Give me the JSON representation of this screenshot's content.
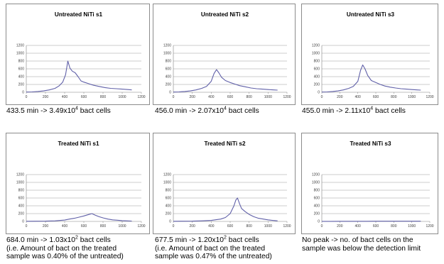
{
  "chart_data": [
    {
      "type": "line",
      "title": "Untreated NiTi s1",
      "xlim": [
        0,
        1200
      ],
      "ylim": [
        0,
        1200
      ],
      "xticks": [
        0,
        200,
        400,
        600,
        800,
        1000,
        1200
      ],
      "yticks": [
        0,
        200,
        400,
        600,
        800,
        1000,
        1200
      ],
      "series_color": "#6060a8",
      "x": [
        0,
        60,
        120,
        180,
        240,
        300,
        340,
        380,
        410,
        433.5,
        455,
        480,
        510,
        540,
        570,
        600,
        650,
        700,
        760,
        820,
        880,
        940,
        1000,
        1060,
        1100
      ],
      "y": [
        5,
        10,
        20,
        35,
        60,
        100,
        160,
        260,
        450,
        800,
        620,
        540,
        500,
        400,
        290,
        260,
        220,
        180,
        150,
        120,
        100,
        90,
        80,
        70,
        60
      ],
      "caption": {
        "value": "433.5 min -> 3.49x10",
        "exp": "4",
        "unit": " bact cells",
        "note1": "",
        "note2": ""
      }
    },
    {
      "type": "line",
      "title": "Untreated NiTi s2",
      "xlim": [
        0,
        1200
      ],
      "ylim": [
        0,
        1200
      ],
      "xticks": [
        0,
        200,
        400,
        600,
        800,
        1000,
        1200
      ],
      "yticks": [
        0,
        200,
        400,
        600,
        800,
        1000,
        1200
      ],
      "series_color": "#6060a8",
      "x": [
        0,
        60,
        120,
        180,
        240,
        300,
        350,
        400,
        430,
        456,
        480,
        510,
        550,
        600,
        650,
        700,
        760,
        820,
        880,
        940,
        1000,
        1060,
        1100
      ],
      "y": [
        5,
        10,
        20,
        35,
        60,
        100,
        150,
        280,
        480,
        580,
        500,
        380,
        300,
        250,
        210,
        170,
        140,
        110,
        90,
        80,
        70,
        60,
        55
      ],
      "caption": {
        "value": "456.0 min -> 2.07x10",
        "exp": "4",
        "unit": " bact cells",
        "note1": "",
        "note2": ""
      }
    },
    {
      "type": "line",
      "title": "Untreated NiTi s3",
      "xlim": [
        0,
        1200
      ],
      "ylim": [
        0,
        1200
      ],
      "xticks": [
        0,
        200,
        400,
        600,
        800,
        1000,
        1200
      ],
      "yticks": [
        0,
        200,
        400,
        600,
        800,
        1000,
        1200
      ],
      "series_color": "#6060a8",
      "x": [
        0,
        60,
        120,
        180,
        240,
        300,
        350,
        400,
        430,
        455,
        480,
        510,
        550,
        600,
        650,
        700,
        760,
        820,
        880,
        940,
        1000,
        1060,
        1100
      ],
      "y": [
        5,
        10,
        20,
        35,
        60,
        100,
        150,
        280,
        560,
        700,
        600,
        430,
        300,
        250,
        200,
        160,
        130,
        110,
        90,
        80,
        70,
        60,
        55
      ],
      "caption": {
        "value": "455.0 min -> 2.11x10",
        "exp": "4",
        "unit": " bact cells",
        "note1": "",
        "note2": ""
      }
    },
    {
      "type": "line",
      "title": "Treated NiTi s1",
      "xlim": [
        0,
        1200
      ],
      "ylim": [
        0,
        1200
      ],
      "xticks": [
        0,
        200,
        400,
        600,
        800,
        1000,
        1200
      ],
      "yticks": [
        0,
        200,
        400,
        600,
        800,
        1000,
        1200
      ],
      "series_color": "#6060a8",
      "x": [
        0,
        100,
        200,
        300,
        400,
        450,
        500,
        550,
        600,
        640,
        684,
        720,
        760,
        800,
        850,
        900,
        950,
        1000,
        1050,
        1100
      ],
      "y": [
        3,
        5,
        8,
        15,
        35,
        60,
        80,
        110,
        140,
        170,
        200,
        160,
        120,
        90,
        60,
        40,
        30,
        20,
        15,
        10
      ],
      "caption": {
        "value": "684.0 min -> 1.03x10",
        "exp": "2",
        "unit": " bact cells",
        "note1": "(i.e. Amount of bact on the treated",
        "note2": "sample was 0.40% of the untreated)"
      }
    },
    {
      "type": "line",
      "title": "Treated NiTi s2",
      "xlim": [
        0,
        1200
      ],
      "ylim": [
        0,
        1200
      ],
      "xticks": [
        0,
        200,
        400,
        600,
        800,
        1000,
        1200
      ],
      "yticks": [
        0,
        200,
        400,
        600,
        800,
        1000,
        1200
      ],
      "series_color": "#6060a8",
      "x": [
        0,
        100,
        200,
        300,
        400,
        500,
        550,
        600,
        640,
        660,
        677.5,
        700,
        720,
        760,
        800,
        850,
        900,
        950,
        1000,
        1050,
        1100
      ],
      "y": [
        3,
        5,
        8,
        15,
        25,
        60,
        100,
        200,
        400,
        550,
        600,
        450,
        330,
        250,
        180,
        120,
        80,
        60,
        40,
        25,
        15
      ],
      "caption": {
        "value": "677.5 min -> 1.20x10",
        "exp": "2",
        "unit": " bact cells",
        "note1": "(i.e. Amount of bact on the treated",
        "note2": "sample was 0.47% of the untreated)"
      }
    },
    {
      "type": "line",
      "title": "Treated NiTi s3",
      "xlim": [
        0,
        1200
      ],
      "ylim": [
        0,
        1200
      ],
      "xticks": [
        0,
        200,
        400,
        600,
        800,
        1000,
        1200
      ],
      "yticks": [
        0,
        200,
        400,
        600,
        800,
        1000,
        1200
      ],
      "series_color": "#6060a8",
      "x": [
        0,
        100,
        200,
        300,
        400,
        500,
        600,
        700,
        800,
        900,
        1000,
        1100
      ],
      "y": [
        2,
        2,
        3,
        3,
        4,
        4,
        5,
        5,
        6,
        6,
        6,
        5
      ],
      "caption": {
        "value": "No peak -> no. of bact cells on the",
        "exp": "",
        "unit": "",
        "note1": "sample was below the detection limit",
        "note2": ""
      }
    }
  ]
}
